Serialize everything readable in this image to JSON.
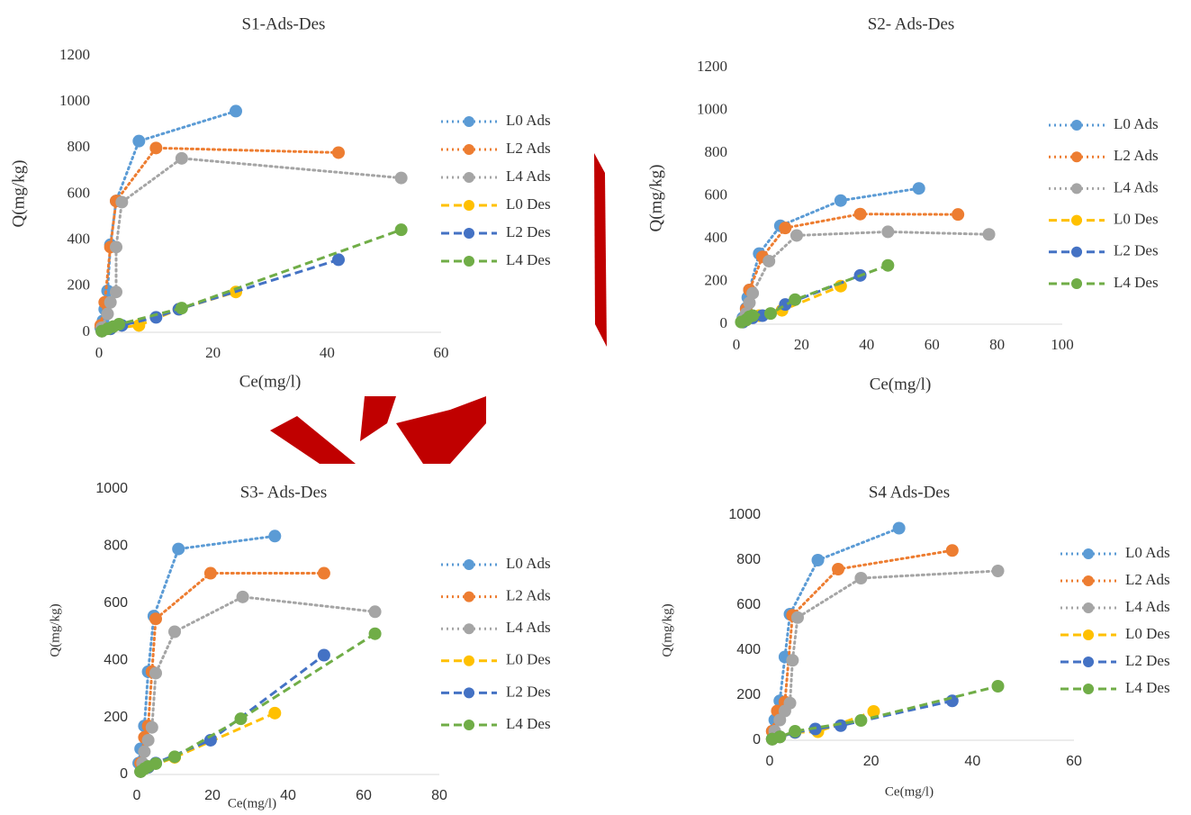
{
  "chart_data": [
    {
      "type": "line",
      "title": "S1-Ads-Des",
      "x_label": "Ce(mg/l)",
      "y_label": "Q(mg/kg)",
      "xlim": [
        0,
        60
      ],
      "xticks": [
        0,
        20,
        40,
        60
      ],
      "ylim": [
        0,
        1200
      ],
      "yticks": [
        0,
        200,
        400,
        600,
        800,
        1000,
        1200
      ],
      "grid": false,
      "legend": "right",
      "series": [
        {
          "name": "L0 Ads",
          "color": "#5b9bd5",
          "dash": "dotted",
          "x": [
            0.3,
            0.7,
            1,
            1.5,
            2,
            3,
            7,
            24
          ],
          "values": [
            20,
            50,
            100,
            180,
            380,
            570,
            830,
            960
          ]
        },
        {
          "name": "L2 Ads",
          "color": "#ed7d31",
          "dash": "dotted",
          "x": [
            0.3,
            1,
            2,
            3,
            10,
            42
          ],
          "values": [
            30,
            130,
            370,
            570,
            800,
            780
          ]
        },
        {
          "name": "L4 Ads",
          "color": "#a5a5a5",
          "dash": "dotted",
          "x": [
            0.5,
            1.5,
            2,
            3,
            3,
            4,
            14.5,
            53
          ],
          "values": [
            20,
            80,
            130,
            175,
            370,
            565,
            755,
            670
          ]
        },
        {
          "name": "L0 Des",
          "color": "#ffc000",
          "dash": "dashed",
          "x": [
            0.5,
            2,
            7,
            14,
            24
          ],
          "values": [
            5,
            15,
            30,
            100,
            175
          ]
        },
        {
          "name": "L2 Des",
          "color": "#4472c4",
          "dash": "dashed",
          "x": [
            0.5,
            2,
            4,
            10,
            14,
            42
          ],
          "values": [
            5,
            15,
            30,
            65,
            100,
            315
          ]
        },
        {
          "name": "L4 Des",
          "color": "#70ad47",
          "dash": "dashed",
          "x": [
            0.5,
            1.5,
            2.5,
            3.5,
            14.5,
            53
          ],
          "values": [
            5,
            15,
            25,
            35,
            105,
            445
          ]
        }
      ]
    },
    {
      "type": "line",
      "title": "S2- Ads-Des",
      "x_label": "Ce(mg/l)",
      "y_label": "Q(mg/kg)",
      "xlim": [
        0,
        100
      ],
      "xticks": [
        0,
        20,
        40,
        60,
        80,
        100
      ],
      "ylim": [
        0,
        1200
      ],
      "yticks": [
        0,
        200,
        400,
        600,
        800,
        1000,
        1200
      ],
      "grid": false,
      "legend": "right",
      "series": [
        {
          "name": "L0 Ads",
          "color": "#5b9bd5",
          "dash": "dotted",
          "x": [
            2,
            3,
            3.5,
            4,
            7,
            13.5,
            32,
            56
          ],
          "values": [
            30,
            75,
            125,
            160,
            330,
            460,
            578,
            635
          ]
        },
        {
          "name": "L2 Ads",
          "color": "#ed7d31",
          "dash": "dotted",
          "x": [
            2,
            3,
            4,
            8,
            15,
            38,
            68
          ],
          "values": [
            20,
            70,
            160,
            315,
            450,
            515,
            513
          ]
        },
        {
          "name": "L4 Ads",
          "color": "#a5a5a5",
          "dash": "dotted",
          "x": [
            2,
            3,
            4,
            5,
            10,
            18.5,
            46.5,
            77.5
          ],
          "values": [
            20,
            50,
            100,
            145,
            295,
            415,
            432,
            420
          ]
        },
        {
          "name": "L0 Des",
          "color": "#ffc000",
          "dash": "dashed",
          "x": [
            2,
            3,
            7,
            14,
            32
          ],
          "values": [
            10,
            20,
            40,
            65,
            178
          ]
        },
        {
          "name": "L2 Des",
          "color": "#4472c4",
          "dash": "dashed",
          "x": [
            2,
            3,
            5,
            8,
            15,
            38
          ],
          "values": [
            10,
            20,
            30,
            40,
            92,
            228
          ]
        },
        {
          "name": "L4 Des",
          "color": "#70ad47",
          "dash": "dashed",
          "x": [
            1.5,
            3,
            4,
            5,
            10.5,
            18,
            46.5
          ],
          "values": [
            10,
            20,
            35,
            40,
            50,
            115,
            275
          ]
        }
      ]
    },
    {
      "type": "line",
      "title": "S3- Ads-Des",
      "x_label": "Ce(mg/l)",
      "y_label": "Q(mg/kg)",
      "xlim": [
        0,
        80
      ],
      "xticks": [
        0,
        20,
        40,
        60,
        80
      ],
      "ylim": [
        0,
        1000
      ],
      "yticks": [
        0,
        200,
        400,
        600,
        800,
        1000
      ],
      "grid": false,
      "legend": "right",
      "series": [
        {
          "name": "L0 Ads",
          "color": "#5b9bd5",
          "dash": "dotted",
          "x": [
            0.5,
            1,
            2,
            3,
            4.5,
            11,
            36.5
          ],
          "values": [
            40,
            90,
            170,
            360,
            555,
            790,
            835
          ]
        },
        {
          "name": "L2 Ads",
          "color": "#ed7d31",
          "dash": "dotted",
          "x": [
            1,
            2,
            3,
            4,
            5,
            19.5,
            49.5
          ],
          "values": [
            40,
            130,
            170,
            360,
            545,
            705,
            705
          ]
        },
        {
          "name": "L4 Ads",
          "color": "#a5a5a5",
          "dash": "dotted",
          "x": [
            1.5,
            2,
            3,
            4,
            5,
            10,
            28,
            63
          ],
          "values": [
            40,
            80,
            120,
            165,
            355,
            500,
            622,
            570
          ]
        },
        {
          "name": "L0 Des",
          "color": "#ffc000",
          "dash": "dashed",
          "x": [
            1,
            3,
            10,
            36.5
          ],
          "values": [
            10,
            25,
            60,
            215
          ]
        },
        {
          "name": "L2 Des",
          "color": "#4472c4",
          "dash": "dashed",
          "x": [
            1,
            3,
            5,
            19.5,
            49.5
          ],
          "values": [
            10,
            25,
            40,
            120,
            418
          ]
        },
        {
          "name": "L4 Des",
          "color": "#70ad47",
          "dash": "dashed",
          "x": [
            1,
            2,
            3,
            5,
            10,
            27.5,
            63
          ],
          "values": [
            10,
            20,
            28,
            38,
            62,
            195,
            493
          ]
        }
      ]
    },
    {
      "type": "line",
      "title": "S4 Ads-Des",
      "x_label": "Ce(mg/l)",
      "y_label": "Q(mg/kg)",
      "xlim": [
        0,
        60
      ],
      "xticks": [
        0,
        20,
        40,
        60
      ],
      "ylim": [
        0,
        1000
      ],
      "yticks": [
        0,
        200,
        400,
        600,
        800,
        1000
      ],
      "grid": false,
      "legend": "right",
      "series": [
        {
          "name": "L0 Ads",
          "color": "#5b9bd5",
          "dash": "dotted",
          "x": [
            0.5,
            1,
            2,
            3,
            4,
            9.5,
            25.5
          ],
          "values": [
            40,
            90,
            175,
            370,
            560,
            800,
            942
          ]
        },
        {
          "name": "L2 Ads",
          "color": "#ed7d31",
          "dash": "dotted",
          "x": [
            0.5,
            1.5,
            3,
            4.5,
            13.5,
            36
          ],
          "values": [
            40,
            130,
            170,
            555,
            760,
            843
          ]
        },
        {
          "name": "L4 Ads",
          "color": "#a5a5a5",
          "dash": "dotted",
          "x": [
            1,
            2,
            3,
            4,
            4.5,
            5.5,
            18,
            45
          ],
          "values": [
            40,
            90,
            130,
            165,
            355,
            545,
            720,
            752
          ]
        },
        {
          "name": "L0 Des",
          "color": "#ffc000",
          "dash": "dashed",
          "x": [
            0.5,
            2,
            5,
            9.5,
            20.5
          ],
          "values": [
            5,
            15,
            35,
            38,
            128
          ]
        },
        {
          "name": "L2 Des",
          "color": "#4472c4",
          "dash": "dashed",
          "x": [
            0.5,
            2,
            5,
            9,
            14,
            36
          ],
          "values": [
            5,
            15,
            35,
            50,
            65,
            175
          ]
        },
        {
          "name": "L4 Des",
          "color": "#70ad47",
          "dash": "dashed",
          "x": [
            0.5,
            2,
            5,
            18,
            45
          ],
          "values": [
            5,
            15,
            40,
            88,
            240
          ]
        }
      ]
    }
  ]
}
